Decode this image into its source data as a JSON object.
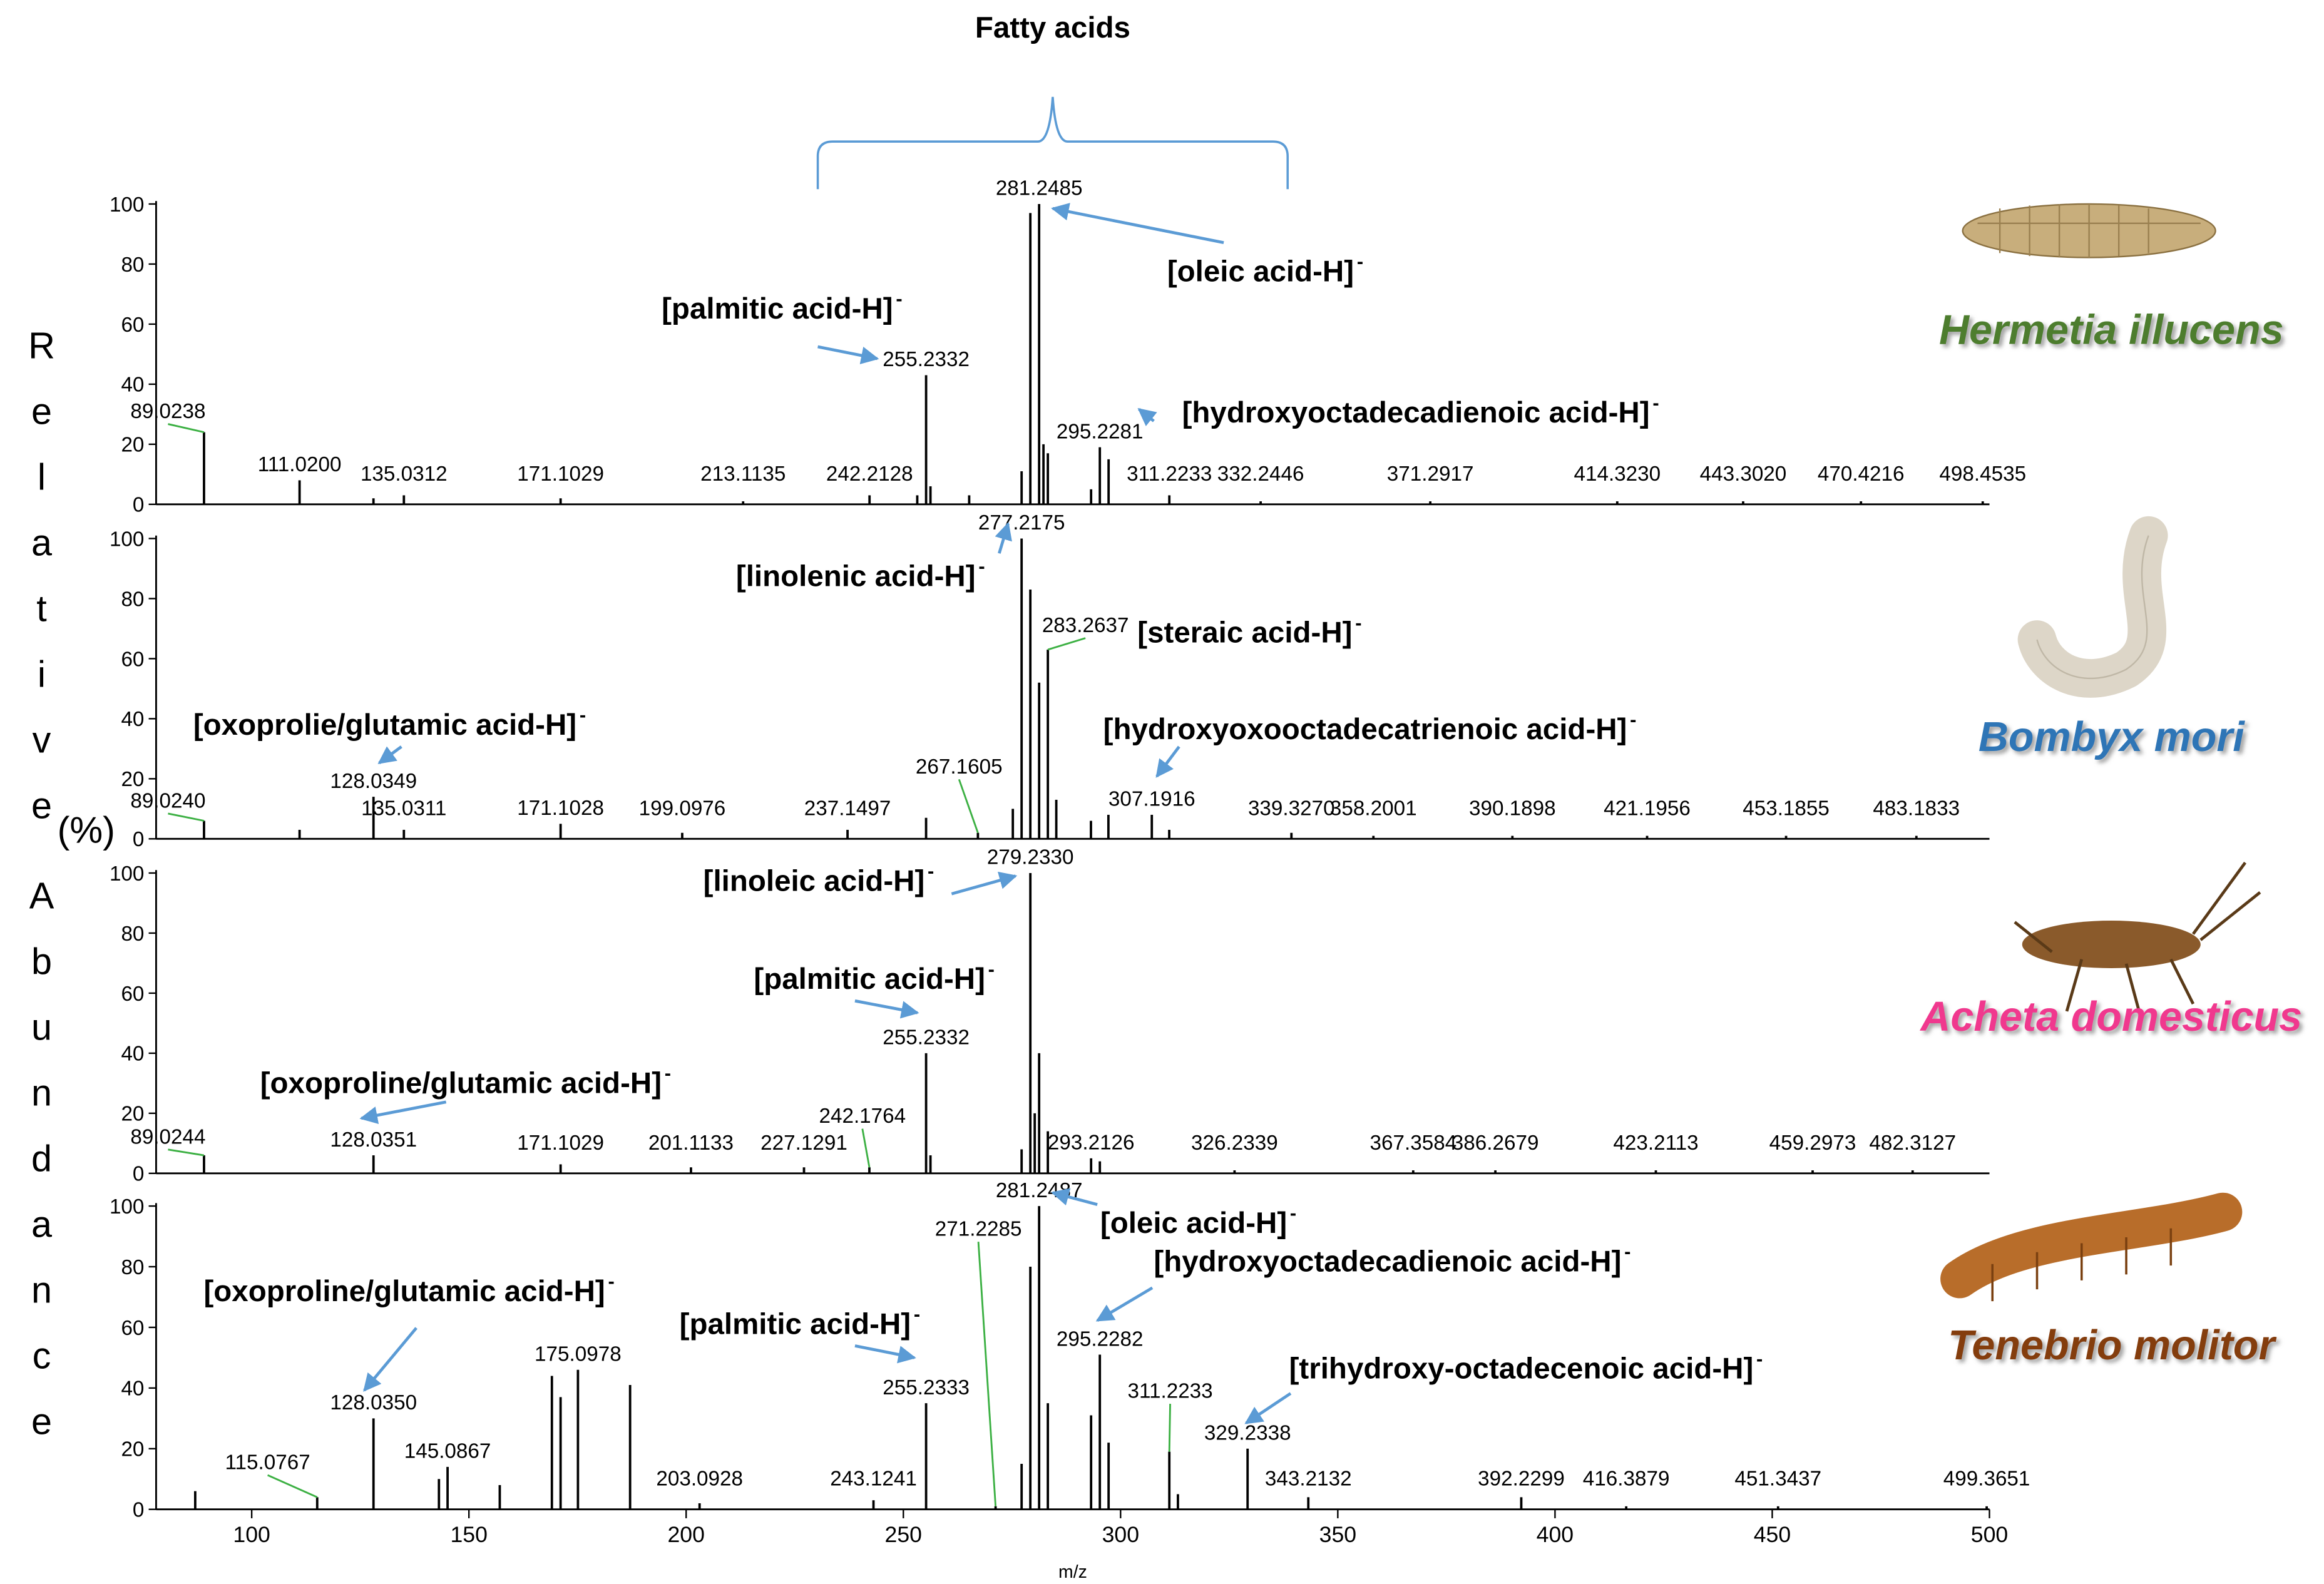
{
  "title": "Fatty acids",
  "y_label_parts": [
    "Relative",
    "(%)",
    "Abundance"
  ],
  "chart_data": [
    {
      "type": "stem",
      "title": "Hermetia illucens",
      "title_color": "#4e7d2f",
      "color": "#000000",
      "xlim": [
        78,
        500
      ],
      "ylim": [
        0,
        100
      ],
      "yticks": [
        0,
        20,
        40,
        60,
        80,
        100
      ],
      "x": [
        89.0238,
        111.02,
        128.03,
        135.0312,
        171.1029,
        213.1135,
        242.2128,
        253.2,
        255.2332,
        256.24,
        265.15,
        277.22,
        279.23,
        281.2485,
        282.25,
        283.26,
        293.21,
        295.2281,
        297.24,
        311.2233,
        332.2446,
        371.2917,
        414.323,
        443.302,
        470.4216,
        498.4535
      ],
      "values": [
        24,
        8,
        2,
        3,
        2,
        1,
        3,
        3,
        43,
        6,
        3,
        11,
        97,
        100,
        20,
        17,
        5,
        19,
        15,
        3,
        1,
        1,
        1,
        1,
        1,
        1
      ],
      "x_labels": [
        "89.0238",
        "111.0200",
        null,
        "135.0312",
        "171.1029",
        "213.1135",
        "242.2128",
        null,
        "255.2332",
        null,
        null,
        null,
        null,
        "281.2485",
        null,
        null,
        null,
        "295.2281",
        null,
        "311.2233",
        "332.2446",
        "371.2917",
        "414.3230",
        "443.3020",
        "470.4216",
        "498.4535"
      ],
      "annotations": [
        {
          "text": "[palmitic acid-H]",
          "charge": "-"
        },
        {
          "text": "[oleic acid-H]",
          "charge": "-"
        },
        {
          "text": "[hydroxyoctadecadienoic acid-H]",
          "charge": "-"
        }
      ]
    },
    {
      "type": "stem",
      "title": "Bombyx mori",
      "title_color": "#2e75b6",
      "color": "#000000",
      "xlim": [
        78,
        500
      ],
      "ylim": [
        0,
        100
      ],
      "yticks": [
        0,
        20,
        40,
        60,
        80,
        100
      ],
      "x": [
        89.024,
        111.02,
        128.0349,
        135.0311,
        171.1028,
        199.0976,
        237.1497,
        255.23,
        267.1605,
        275.2,
        277.2175,
        279.23,
        281.25,
        283.2637,
        285.2,
        293.18,
        297.2,
        307.1916,
        311.2,
        339.327,
        358.2001,
        390.1898,
        421.1956,
        453.1855,
        483.1833
      ],
      "values": [
        6,
        3,
        14,
        3,
        5,
        2,
        3,
        7,
        2,
        10,
        100,
        83,
        52,
        63,
        13,
        6,
        8,
        8,
        3,
        2,
        1,
        1,
        1,
        1,
        1
      ],
      "x_labels": [
        "89.0240",
        null,
        "128.0349",
        "135.0311",
        "171.1028",
        "199.0976",
        "237.1497",
        null,
        "267.1605",
        null,
        "277.2175",
        null,
        null,
        "283.2637",
        null,
        null,
        null,
        "307.1916",
        null,
        "339.3270",
        "358.2001",
        "390.1898",
        "421.1956",
        "453.1855",
        "483.1833"
      ],
      "annotations": [
        {
          "text": "[linolenic acid-H]",
          "charge": "-"
        },
        {
          "text": "[steraic acid-H]",
          "charge": "-"
        },
        {
          "text": "[oxoprolie/glutamic acid-H]",
          "charge": "-"
        },
        {
          "text": "[hydroxyoxooctadecatrienoic acid-H]",
          "charge": "-"
        }
      ]
    },
    {
      "type": "stem",
      "title": "Acheta domesticus",
      "title_color": "#f0398e",
      "color": "#000000",
      "xlim": [
        78,
        500
      ],
      "ylim": [
        0,
        100
      ],
      "yticks": [
        0,
        20,
        40,
        60,
        80,
        100
      ],
      "x": [
        89.0244,
        128.0351,
        171.1029,
        201.1133,
        227.1291,
        242.1764,
        255.2332,
        256.24,
        277.22,
        279.233,
        280.24,
        281.25,
        283.26,
        293.2126,
        295.23,
        326.2339,
        367.3584,
        386.2679,
        423.2113,
        459.2973,
        482.3127
      ],
      "values": [
        6,
        6,
        3,
        2,
        2,
        2,
        40,
        6,
        8,
        100,
        20,
        40,
        14,
        5,
        4,
        1,
        1,
        1,
        1,
        1,
        1
      ],
      "x_labels": [
        "89.0244",
        "128.0351",
        "171.1029",
        "201.1133",
        "227.1291",
        "242.1764",
        "255.2332",
        null,
        null,
        "279.2330",
        null,
        null,
        null,
        "293.2126",
        null,
        "326.2339",
        "367.3584",
        "386.2679",
        "423.2113",
        "459.2973",
        "482.3127"
      ],
      "annotations": [
        {
          "text": "[linoleic acid-H]",
          "charge": "-"
        },
        {
          "text": "[palmitic acid-H]",
          "charge": "-"
        },
        {
          "text": "[oxoproline/glutamic acid-H]",
          "charge": "-"
        }
      ]
    },
    {
      "type": "stem",
      "title": "Tenebrio molitor",
      "title_color": "#843c0c",
      "color": "#000000",
      "xlim": [
        78,
        500
      ],
      "ylim": [
        0,
        100
      ],
      "yticks": [
        0,
        20,
        40,
        60,
        80,
        100
      ],
      "xticks": [
        100,
        150,
        200,
        250,
        300,
        350,
        400,
        450,
        500
      ],
      "x_label": "m/z",
      "x": [
        87.0,
        115.0767,
        128.035,
        143.1,
        145.0867,
        157.1,
        169.1,
        171.1,
        175.0978,
        187.1,
        203.0928,
        243.1241,
        255.2333,
        271.2285,
        277.22,
        279.23,
        281.2487,
        283.26,
        293.21,
        295.2282,
        297.24,
        311.2233,
        313.2,
        329.2338,
        343.2132,
        392.2299,
        416.3879,
        451.3437,
        499.3651
      ],
      "values": [
        6,
        4,
        30,
        10,
        14,
        8,
        44,
        37,
        46,
        41,
        2,
        3,
        35,
        1,
        15,
        80,
        100,
        35,
        31,
        51,
        22,
        19,
        5,
        20,
        4,
        4,
        1,
        1,
        1
      ],
      "x_labels": [
        null,
        "115.0767",
        "128.0350",
        null,
        "145.0867",
        null,
        null,
        null,
        "175.0978",
        null,
        "203.0928",
        "243.1241",
        "255.2333",
        "271.2285",
        null,
        null,
        "281.2487",
        null,
        null,
        "295.2282",
        null,
        "311.2233",
        null,
        "329.2338",
        "343.2132",
        "392.2299",
        "416.3879",
        "451.3437",
        "499.3651"
      ],
      "annotations": [
        {
          "text": "[oleic acid-H]",
          "charge": "-"
        },
        {
          "text": "[hydroxyoctadecadienoic acid-H]",
          "charge": "-"
        },
        {
          "text": "[oxoproline/glutamic acid-H]",
          "charge": "-"
        },
        {
          "text": "[palmitic acid-H]",
          "charge": "-"
        },
        {
          "text": "[trihydroxy-octadecenoic acid-H]",
          "charge": "-"
        }
      ]
    }
  ]
}
